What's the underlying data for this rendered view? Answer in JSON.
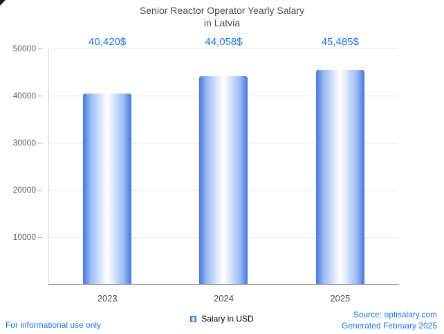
{
  "title": {
    "line1": "Senior Reactor Operator Yearly Salary",
    "line2": "in Latvia"
  },
  "chart_data": {
    "type": "bar",
    "title": "Senior Reactor Operator Yearly Salary in Latvia",
    "categories": [
      "2023",
      "2024",
      "2025"
    ],
    "values": [
      40420,
      44058,
      45485
    ],
    "value_labels": [
      "40,420$",
      "44,058$",
      "45,485$"
    ],
    "series": [
      {
        "name": "Salary in USD",
        "values": [
          40420,
          44058,
          45485
        ]
      }
    ],
    "xlabel": "",
    "ylabel": "",
    "ylim": [
      0,
      50000
    ],
    "yticks": [
      10000,
      20000,
      30000,
      40000,
      50000
    ],
    "grid": true,
    "legend_position": "bottom-center",
    "bar_gradient": [
      "#4577dd",
      "#ffffff",
      "#4577dd"
    ]
  },
  "legend": {
    "label": "Salary in USD"
  },
  "footer": {
    "left": "For informational use only",
    "source": "Source: optisalary.com",
    "generated": "Generated February 2025"
  },
  "colors": {
    "accent_blue": "#1a73e8",
    "bar_edge_blue": "#4577dd",
    "title_gray": "#4d4d4d",
    "axis_gray": "#9a9a9a",
    "gridline_gray": "#e6e6e6"
  }
}
